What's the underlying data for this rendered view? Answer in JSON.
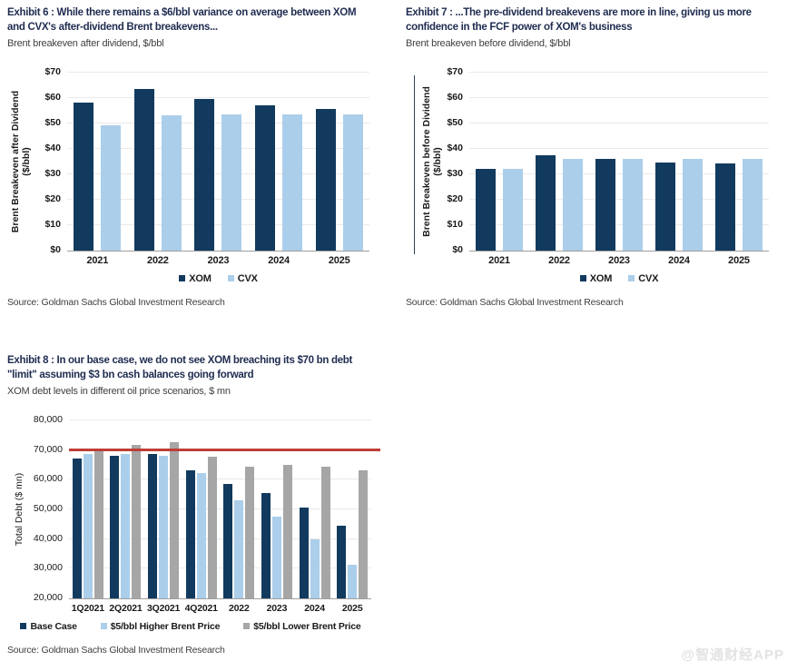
{
  "page": {
    "watermark": "@智通财经APP"
  },
  "colors": {
    "navy": "#123A5E",
    "light_blue": "#ABCEEA",
    "gray": "#A6A6A6",
    "red": "#BE3E36",
    "title_navy": "#1F2C50"
  },
  "chart_data": [
    {
      "type": "bar",
      "title": "Exhibit 6 : While there remains a $6/bbl variance on average between XOM and CVX's after-dividend Brent breakevens...",
      "subtitle": "Brent breakeven after dividend, $/bbl",
      "source": "Source: Goldman Sachs Global Investment Research",
      "ylabel": "Brent Breakeven after Dividend ($/bbl)",
      "ylabel_lines": [
        "Brent Breakeven after Dividend",
        "($/bbl)"
      ],
      "xlabel": "",
      "categories": [
        "2021",
        "2022",
        "2023",
        "2024",
        "2025"
      ],
      "series": [
        {
          "name": "XOM",
          "color": "navy",
          "values": [
            58,
            63.5,
            59.5,
            57,
            55.5
          ]
        },
        {
          "name": "CVX",
          "color": "light_blue",
          "values": [
            49,
            53,
            53.5,
            53.5,
            53.5
          ]
        }
      ],
      "ylim": [
        0,
        70
      ],
      "yticks": [
        {
          "v": 0,
          "label": "$0"
        },
        {
          "v": 10,
          "label": "$10"
        },
        {
          "v": 20,
          "label": "$20"
        },
        {
          "v": 30,
          "label": "$30"
        },
        {
          "v": 40,
          "label": "$40"
        },
        {
          "v": 50,
          "label": "$50"
        },
        {
          "v": 60,
          "label": "$60"
        },
        {
          "v": 70,
          "label": "$70"
        }
      ],
      "grid": true,
      "legend_position": "bottom"
    },
    {
      "type": "bar",
      "title": "Exhibit 7 : ...The pre-dividend breakevens are more in line, giving us more confidence in the FCF power of XOM's business",
      "subtitle": "Brent breakeven before dividend, $/bbl",
      "source": "Source: Goldman Sachs Global Investment Research",
      "ylabel": "Brent Breakeven before Dividend ($/bbl)",
      "ylabel_lines": [
        "Brent Breakeven before Dividend",
        "($/bbl)"
      ],
      "xlabel": "",
      "categories": [
        "2021",
        "2022",
        "2023",
        "2024",
        "2025"
      ],
      "series": [
        {
          "name": "XOM",
          "color": "navy",
          "values": [
            32,
            37.5,
            36,
            34.5,
            34
          ]
        },
        {
          "name": "CVX",
          "color": "light_blue",
          "values": [
            32,
            36,
            36,
            36,
            36
          ]
        }
      ],
      "ylim": [
        0,
        70
      ],
      "yticks": [
        {
          "v": 0,
          "label": "$0"
        },
        {
          "v": 10,
          "label": "$10"
        },
        {
          "v": 20,
          "label": "$20"
        },
        {
          "v": 30,
          "label": "$30"
        },
        {
          "v": 40,
          "label": "$40"
        },
        {
          "v": 50,
          "label": "$50"
        },
        {
          "v": 60,
          "label": "$60"
        },
        {
          "v": 70,
          "label": "$70"
        }
      ],
      "grid": true,
      "legend_position": "bottom"
    },
    {
      "type": "bar",
      "title": "Exhibit 8 : In our base case, we do not see XOM breaching its $70 bn debt \"limit\" assuming $3 bn cash balances going forward",
      "subtitle": "XOM debt levels in different oil price scenarios, $ mn",
      "source": "Source: Goldman Sachs Global Investment Research",
      "ylabel": "Total Debt ($ mn)",
      "ylabel_lines": [
        "Total Debt ($ mn)"
      ],
      "xlabel": "",
      "categories": [
        "1Q2021",
        "2Q2021",
        "3Q2021",
        "4Q2021",
        "2022",
        "2023",
        "2024",
        "2025"
      ],
      "series": [
        {
          "name": "Base Case",
          "color": "navy",
          "values": [
            67100,
            68100,
            68500,
            63000,
            58500,
            55300,
            50500,
            44500
          ]
        },
        {
          "name": "$5/bbl Higher Brent Price",
          "color": "light_blue",
          "values": [
            68500,
            68700,
            67900,
            62000,
            53000,
            47400,
            39800,
            31200
          ]
        },
        {
          "name": "$5/bbl Lower Brent Price",
          "color": "gray",
          "values": [
            69500,
            71700,
            72400,
            67800,
            64400,
            64900,
            64400,
            63100
          ]
        }
      ],
      "ylim": [
        20000,
        80000
      ],
      "yticks": [
        {
          "v": 20000,
          "label": "20,000"
        },
        {
          "v": 30000,
          "label": "30,000"
        },
        {
          "v": 40000,
          "label": "40,000"
        },
        {
          "v": 50000,
          "label": "50,000"
        },
        {
          "v": 60000,
          "label": "60,000"
        },
        {
          "v": 70000,
          "label": "70,000"
        },
        {
          "v": 80000,
          "label": "80,000"
        }
      ],
      "ref_line": {
        "v": 70000,
        "color": "red"
      },
      "grid": true,
      "legend_position": "bottom"
    }
  ]
}
